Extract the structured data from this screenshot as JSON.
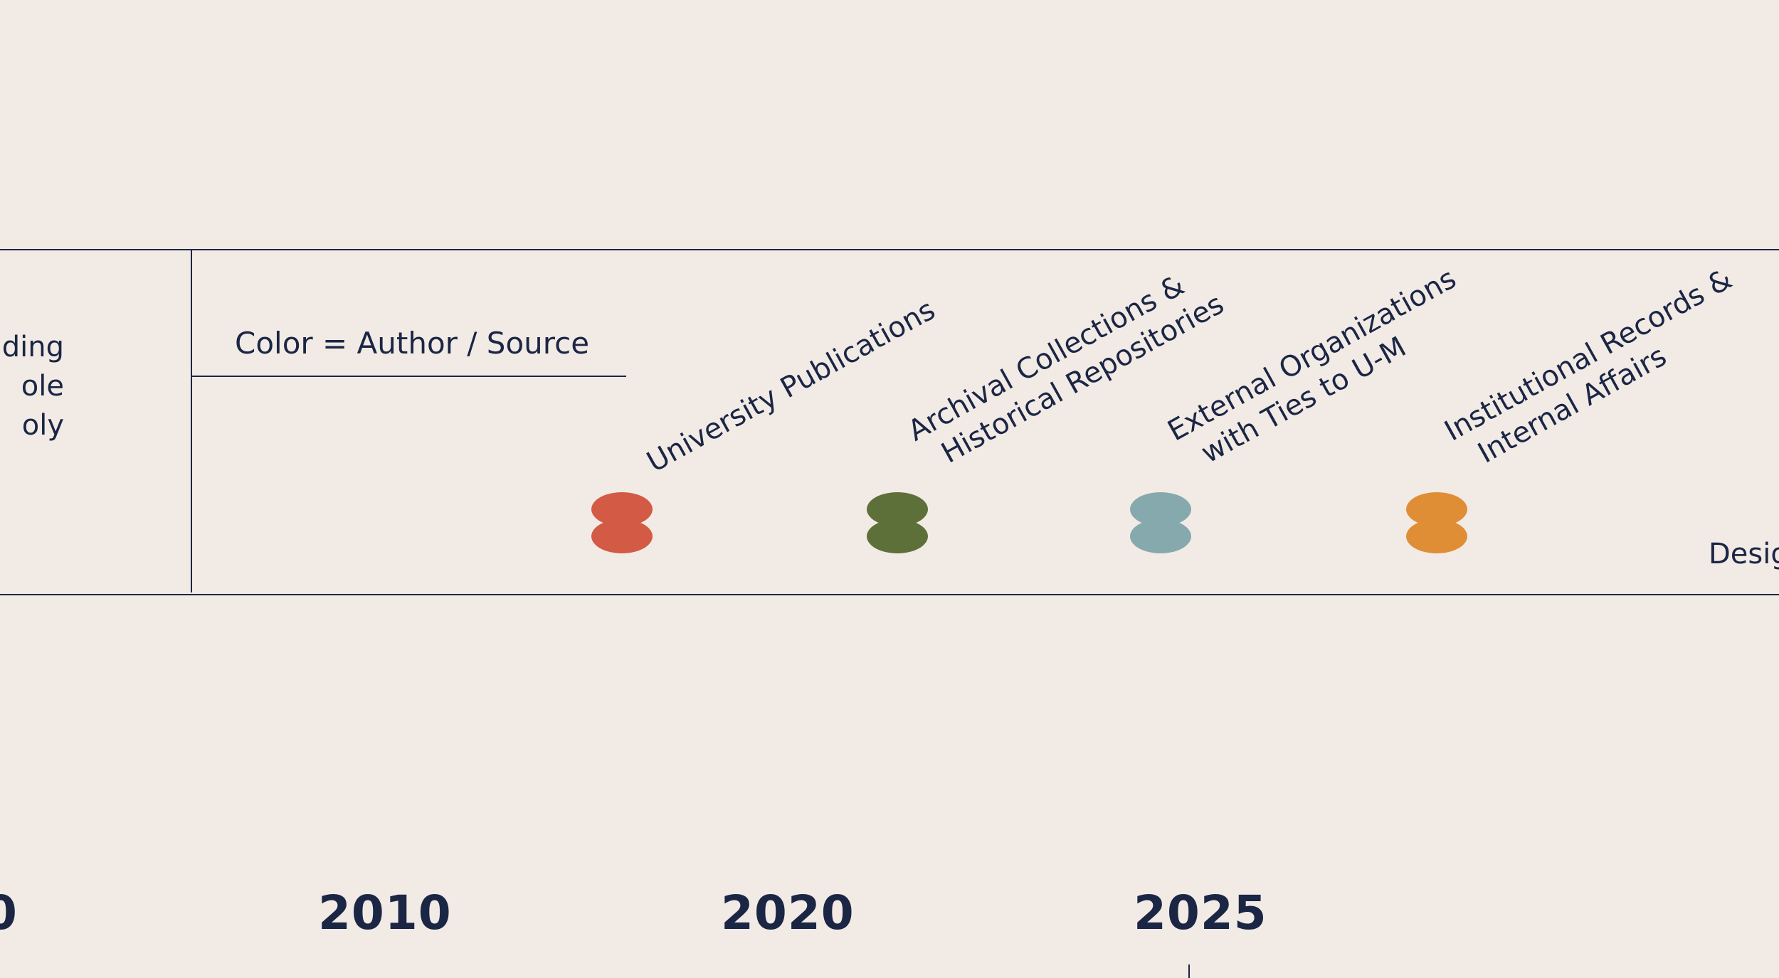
{
  "legend": {
    "title": "Color = Author / Source",
    "left_partial_lines": [
      "ding",
      "ole",
      "oly"
    ],
    "items": [
      {
        "lines": [
          "University Publications"
        ],
        "color": "#d35a44"
      },
      {
        "lines": [
          "Archival Collections &",
          "Historical Repositories"
        ],
        "color": "#5e703a"
      },
      {
        "lines": [
          "External Organizations",
          "with Ties to U-M"
        ],
        "color": "#86a9ad"
      },
      {
        "lines": [
          "Institutional Records &",
          "Internal Affairs"
        ],
        "color": "#e08e36"
      }
    ],
    "design_credit": "Desig"
  },
  "axis": {
    "years": [
      "0",
      "2010",
      "2020",
      "2025"
    ]
  },
  "colors": {
    "background": "#f2ebe5",
    "ink": "#1b2645"
  }
}
